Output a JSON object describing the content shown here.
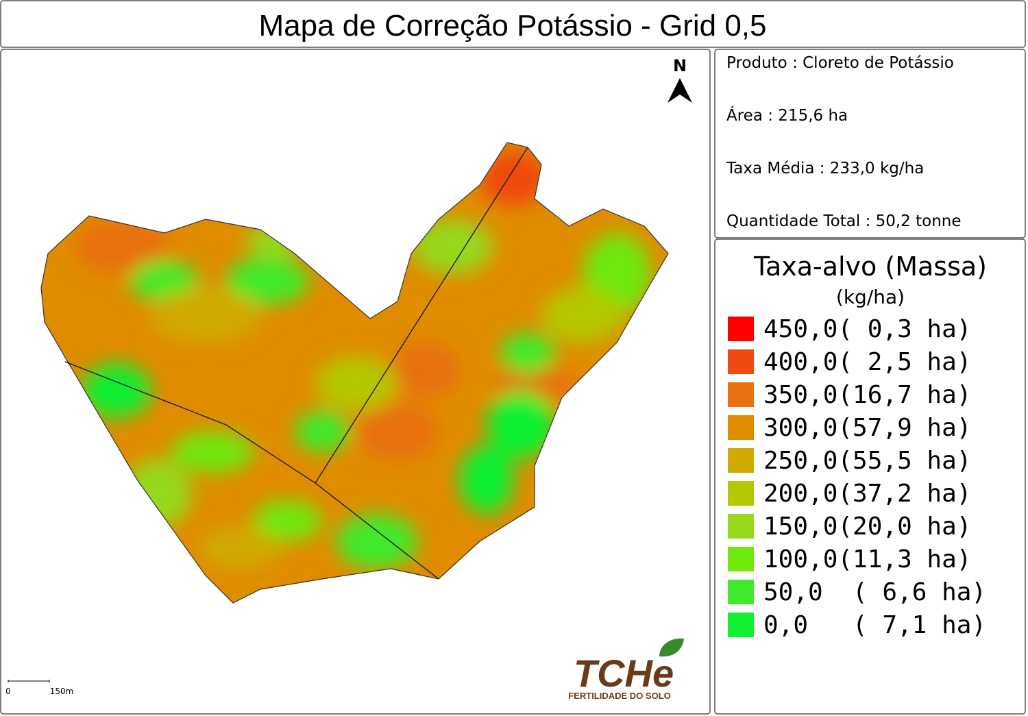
{
  "title": "Mapa de Correção Potássio - Grid 0,5",
  "info": [
    "Produto : Cloreto de Potássio",
    "Área : 215,6 ha",
    "Taxa Média : 233,0 kg/ha",
    "Quantidade Total : 50,2 tonne"
  ],
  "legend": {
    "title": "Taxa-alvo (Massa)",
    "unit": "(kg/ha)",
    "items": [
      {
        "label": "450,0( 0,3 ha)",
        "color": "#ff0000"
      },
      {
        "label": "400,0( 2,5 ha)",
        "color": "#f04a10"
      },
      {
        "label": "350,0(16,7 ha)",
        "color": "#e87010"
      },
      {
        "label": "300,0(57,9 ha)",
        "color": "#e08c00"
      },
      {
        "label": "250,0(55,5 ha)",
        "color": "#d0aa00"
      },
      {
        "label": "200,0(37,2 ha)",
        "color": "#b4c800"
      },
      {
        "label": "150,0(20,0 ha)",
        "color": "#96d81a"
      },
      {
        "label": "100,0(11,3 ha)",
        "color": "#6ee80e"
      },
      {
        "label": "50,0  ( 6,6 ha)",
        "color": "#40ea2a"
      },
      {
        "label": "0,0   ( 7,1 ha)",
        "color": "#10f030"
      }
    ]
  },
  "north": "N",
  "scale": [
    "0",
    "150m"
  ],
  "logo": {
    "name": "TCHe",
    "tagline": "FERTILIDADE DO SOLO"
  }
}
